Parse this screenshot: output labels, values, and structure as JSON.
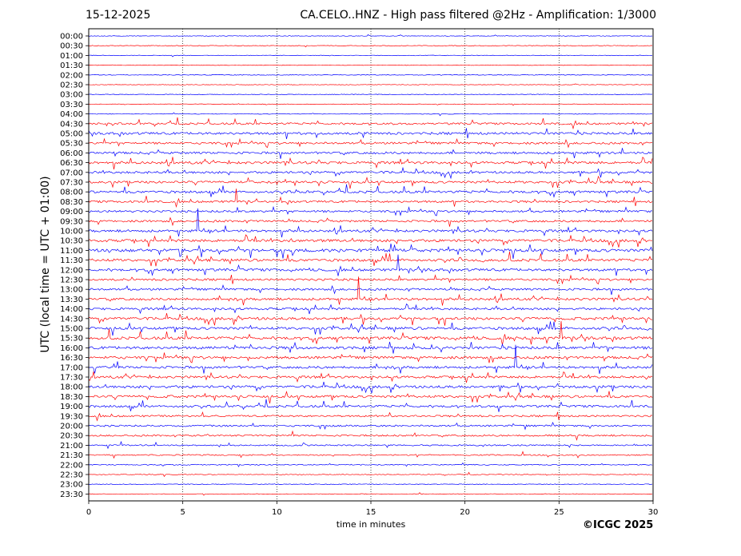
{
  "header": {
    "date": "15-12-2025",
    "title": "CA.CELO..HNZ - High pass filtered @2Hz - Amplification: 1/3000"
  },
  "footer": {
    "copyright": "©ICGC 2025"
  },
  "chart_data": {
    "type": "line",
    "title": "CA.CELO..HNZ - High pass filtered @2Hz - Amplification: 1/3000",
    "xlabel": "time in minutes",
    "ylabel": "UTC (local time = UTC + 01:00)",
    "xlim": [
      0,
      30
    ],
    "x_ticks": [
      0,
      5,
      10,
      15,
      20,
      25,
      30
    ],
    "grid": "vertical dotted at 5-minute ticks",
    "colors": {
      "odd_rows": "#ff0000",
      "even_rows": "#0000ff"
    },
    "rows": [
      {
        "label": "00:00",
        "activity": 0.05
      },
      {
        "label": "00:30",
        "activity": 0.05
      },
      {
        "label": "01:00",
        "activity": 0.04
      },
      {
        "label": "01:30",
        "activity": 0.04
      },
      {
        "label": "02:00",
        "activity": 0.06
      },
      {
        "label": "02:30",
        "activity": 0.04
      },
      {
        "label": "03:00",
        "activity": 0.04
      },
      {
        "label": "03:30",
        "activity": 0.05
      },
      {
        "label": "04:00",
        "activity": 0.08
      },
      {
        "label": "04:30",
        "activity": 0.55
      },
      {
        "label": "05:00",
        "activity": 0.7
      },
      {
        "label": "05:30",
        "activity": 0.6
      },
      {
        "label": "06:00",
        "activity": 0.65
      },
      {
        "label": "06:30",
        "activity": 0.75
      },
      {
        "label": "07:00",
        "activity": 0.65
      },
      {
        "label": "07:30",
        "activity": 0.7
      },
      {
        "label": "08:00",
        "activity": 0.7
      },
      {
        "label": "08:30",
        "activity": 0.6
      },
      {
        "label": "09:00",
        "activity": 0.6
      },
      {
        "label": "09:30",
        "activity": 0.6
      },
      {
        "label": "10:00",
        "activity": 0.7
      },
      {
        "label": "10:30",
        "activity": 0.8
      },
      {
        "label": "11:00",
        "activity": 0.95
      },
      {
        "label": "11:30",
        "activity": 0.8
      },
      {
        "label": "12:00",
        "activity": 0.75
      },
      {
        "label": "12:30",
        "activity": 0.6
      },
      {
        "label": "13:00",
        "activity": 0.6
      },
      {
        "label": "13:30",
        "activity": 0.7
      },
      {
        "label": "14:00",
        "activity": 0.65
      },
      {
        "label": "14:30",
        "activity": 0.8
      },
      {
        "label": "15:00",
        "activity": 0.8
      },
      {
        "label": "15:30",
        "activity": 0.85
      },
      {
        "label": "16:00",
        "activity": 0.85
      },
      {
        "label": "16:30",
        "activity": 0.75
      },
      {
        "label": "17:00",
        "activity": 0.7
      },
      {
        "label": "17:30",
        "activity": 0.7
      },
      {
        "label": "18:00",
        "activity": 0.75
      },
      {
        "label": "18:30",
        "activity": 0.75
      },
      {
        "label": "19:00",
        "activity": 0.65
      },
      {
        "label": "19:30",
        "activity": 0.5
      },
      {
        "label": "20:00",
        "activity": 0.45
      },
      {
        "label": "20:30",
        "activity": 0.45
      },
      {
        "label": "21:00",
        "activity": 0.3
      },
      {
        "label": "21:30",
        "activity": 0.25
      },
      {
        "label": "22:00",
        "activity": 0.2
      },
      {
        "label": "22:30",
        "activity": 0.1
      },
      {
        "label": "23:00",
        "activity": 0.08
      },
      {
        "label": "23:30",
        "activity": 0.05
      }
    ]
  }
}
